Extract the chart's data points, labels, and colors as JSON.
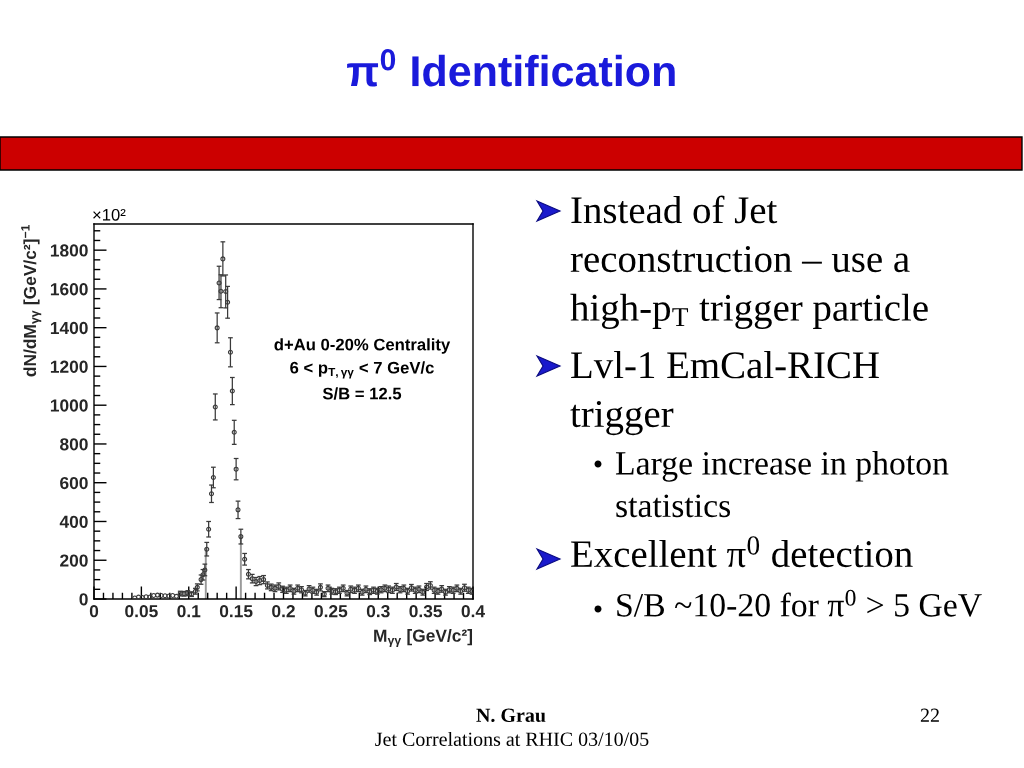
{
  "chart_data": {
    "type": "scatter",
    "title": "π$^{0}$ Identification",
    "xlabel": "M$_{γγ}$ [GeV/c²]",
    "ylabel": "dN/dM$_{γγ}$ [GeV/c²]$^{−1}$",
    "annotations": [
      "×10²",
      "d+Au 0-20% Centrality",
      "6 < p$_{T,γγ}$ < 7 GeV/c",
      "S/B = 12.5",
      "Instead of Jet\nreconstruction – use a\nhigh-p$_{T}$ trigger particle",
      "Lvl-1 EmCal-RICH\ntrigger",
      "Large increase in photon\nstatistics",
      "Excellent π$^{0}$ detection",
      "S/B ~10-20 for π$^{0}$ > 5 GeV",
      "N. Grau",
      "Jet Correlations at RHIC 03/10/05",
      "22"
    ],
    "xlim": [
      0,
      0.4
    ],
    "ylim": [
      0,
      1935
    ],
    "xticks": [
      0,
      {
        "value": 0.01,
        "label": null
      },
      {
        "value": 0.02,
        "label": null
      },
      {
        "value": 0.03,
        "label": null
      },
      {
        "value": 0.04,
        "label": null
      },
      0.05,
      {
        "value": 0.06,
        "label": null
      },
      {
        "value": 0.07,
        "label": null
      },
      {
        "value": 0.08,
        "label": null
      },
      {
        "value": 0.09,
        "label": null
      },
      0.1,
      {
        "value": 0.11,
        "label": null
      },
      {
        "value": 0.12,
        "label": null
      },
      {
        "value": 0.13,
        "label": null
      },
      {
        "value": 0.14,
        "label": null
      },
      0.15,
      {
        "value": 0.16,
        "label": null
      },
      {
        "value": 0.17,
        "label": null
      },
      {
        "value": 0.18,
        "label": null
      },
      {
        "value": 0.19,
        "label": null
      },
      0.2,
      {
        "value": 0.21,
        "label": null
      },
      {
        "value": 0.22,
        "label": null
      },
      {
        "value": 0.23,
        "label": null
      },
      {
        "value": 0.24,
        "label": null
      },
      0.25,
      {
        "value": 0.26,
        "label": null
      },
      {
        "value": 0.27,
        "label": null
      },
      {
        "value": 0.28,
        "label": null
      },
      {
        "value": 0.29,
        "label": null
      },
      0.3,
      {
        "value": 0.31,
        "label": null
      },
      {
        "value": 0.32,
        "label": null
      },
      {
        "value": 0.33,
        "label": null
      },
      {
        "value": 0.34,
        "label": null
      },
      0.35,
      {
        "value": 0.36,
        "label": null
      },
      {
        "value": 0.37,
        "label": null
      },
      {
        "value": 0.38,
        "label": null
      },
      {
        "value": 0.39,
        "label": null
      },
      0.4
    ],
    "yticks": [
      0,
      {
        "value": 50,
        "label": null
      },
      {
        "value": 100,
        "label": null
      },
      {
        "value": 150,
        "label": null
      },
      200,
      {
        "value": 250,
        "label": null
      },
      {
        "value": 300,
        "label": null
      },
      {
        "value": 350,
        "label": null
      },
      400,
      {
        "value": 450,
        "label": null
      },
      {
        "value": 500,
        "label": null
      },
      {
        "value": 550,
        "label": null
      },
      600,
      {
        "value": 650,
        "label": null
      },
      {
        "value": 700,
        "label": null
      },
      {
        "value": 750,
        "label": null
      },
      800,
      {
        "value": 850,
        "label": null
      },
      {
        "value": 900,
        "label": null
      },
      {
        "value": 950,
        "label": null
      },
      1000,
      {
        "value": 1050,
        "label": null
      },
      {
        "value": 1100,
        "label": null
      },
      {
        "value": 1150,
        "label": null
      },
      1200,
      {
        "value": 1250,
        "label": null
      },
      {
        "value": 1300,
        "label": null
      },
      {
        "value": 1350,
        "label": null
      },
      1400,
      {
        "value": 1450,
        "label": null
      },
      {
        "value": 1500,
        "label": null
      },
      {
        "value": 1550,
        "label": null
      },
      1600,
      {
        "value": 1650,
        "label": null
      },
      {
        "value": 1700,
        "label": null
      },
      {
        "value": 1750,
        "label": null
      },
      1800,
      {
        "value": 1850,
        "label": null
      },
      {
        "value": 1900,
        "label": null
      }
    ],
    "marker": "circle",
    "series": [
      {
        "type": "line",
        "marker": "none",
        "color": "#9a9a9a",
        "x": [
          0.118,
          0.118
        ],
        "values": [
          0,
          260
        ]
      },
      {
        "type": "line",
        "marker": "none",
        "color": "#9a9a9a",
        "x": [
          0.155,
          0.155
        ],
        "values": [
          0,
          325
        ]
      },
      {
        "color": "#3a3a3a",
        "x": [
          0.043,
          0.047,
          0.051,
          0.055,
          0.059,
          0.063,
          0.067,
          0.071,
          0.075,
          0.079,
          0.083,
          0.087,
          0.091,
          0.095,
          0.099,
          0.103,
          0.107,
          0.109,
          0.113,
          0.115,
          0.117,
          0.119,
          0.121,
          0.124,
          0.126,
          0.128,
          0.13,
          0.132,
          0.134,
          0.136,
          0.139,
          0.141,
          0.144,
          0.146,
          0.148,
          0.15,
          0.152,
          0.155,
          0.159,
          0.163,
          0.167,
          0.171,
          0.175,
          0.179,
          0.183,
          0.187,
          0.191,
          0.195,
          0.199,
          0.203,
          0.207,
          0.211,
          0.215,
          0.219,
          0.223,
          0.227,
          0.231,
          0.235,
          0.239,
          0.243,
          0.247,
          0.251,
          0.255,
          0.259,
          0.263,
          0.267,
          0.271,
          0.275,
          0.279,
          0.283,
          0.287,
          0.291,
          0.295,
          0.299,
          0.303,
          0.307,
          0.311,
          0.315,
          0.319,
          0.323,
          0.327,
          0.331,
          0.335,
          0.339,
          0.343,
          0.347,
          0.351,
          0.355,
          0.359,
          0.363,
          0.367,
          0.371,
          0.375,
          0.379,
          0.383,
          0.387,
          0.391,
          0.395,
          0.399
        ],
        "values": [
          5,
          10,
          8,
          12,
          10,
          18,
          20,
          18,
          17,
          15,
          18,
          14,
          28,
          27,
          30,
          25,
          40,
          60,
          100,
          125,
          150,
          257,
          360,
          543,
          627,
          991,
          1399,
          1631,
          1588,
          1755,
          1587,
          1531,
          1273,
          1073,
          860,
          670,
          460,
          322,
          205,
          128,
          105,
          90,
          95,
          100,
          70,
          60,
          55,
          65,
          50,
          45,
          55,
          40,
          55,
          48,
          30,
          52,
          45,
          35,
          60,
          25,
          55,
          40,
          38,
          45,
          55,
          30,
          50,
          45,
          55,
          35,
          50,
          38,
          45,
          40,
          48,
          55,
          50,
          45,
          62,
          48,
          55,
          40,
          58,
          45,
          50,
          35,
          62,
          70,
          45,
          40,
          52,
          35,
          48,
          45,
          55,
          40,
          58,
          45,
          40
        ],
        "errors": [
          null,
          null,
          null,
          null,
          null,
          null,
          null,
          null,
          null,
          null,
          null,
          null,
          12,
          12,
          13,
          12,
          15,
          18,
          24,
          27,
          30,
          35,
          40,
          45,
          53,
          67,
          77,
          86,
          85,
          88,
          85,
          82,
          75,
          70,
          62,
          55,
          45,
          38,
          30,
          24,
          22,
          21,
          21,
          21,
          18,
          17,
          17,
          18,
          16,
          16,
          17,
          15,
          17,
          16,
          14,
          17,
          16,
          15,
          18,
          13,
          17,
          15,
          15,
          16,
          17,
          14,
          17,
          16,
          17,
          15,
          17,
          15,
          16,
          15,
          16,
          17,
          17,
          16,
          18,
          16,
          17,
          15,
          17,
          16,
          17,
          15,
          18,
          19,
          16,
          15,
          17,
          15,
          16,
          16,
          17,
          15,
          18,
          16,
          15
        ]
      }
    ]
  }
}
